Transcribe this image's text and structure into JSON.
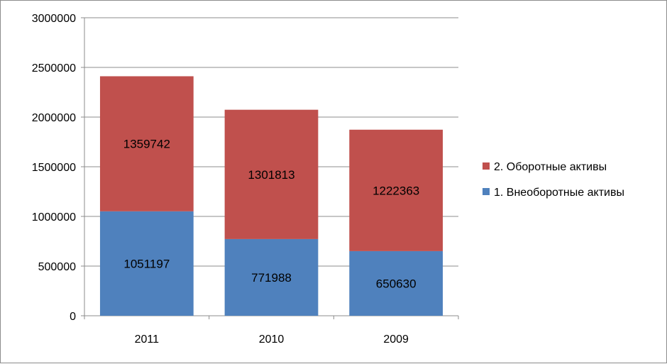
{
  "chart_data": {
    "type": "bar",
    "stacked": true,
    "categories": [
      "2011",
      "2010",
      "2009"
    ],
    "series": [
      {
        "name": "1. Внеоборотные активы",
        "values": [
          1051197,
          771988,
          650630
        ],
        "color": "#4f81bd"
      },
      {
        "name": "2. Оборотные активы",
        "values": [
          1359742,
          1301813,
          1222363
        ],
        "color": "#c0504d"
      }
    ],
    "yticks": [
      "0",
      "500000",
      "1000000",
      "1500000",
      "2000000",
      "2500000",
      "3000000"
    ],
    "ylim": [
      0,
      3000000
    ],
    "grid": true,
    "legend_position": "right",
    "data_labels": true
  }
}
